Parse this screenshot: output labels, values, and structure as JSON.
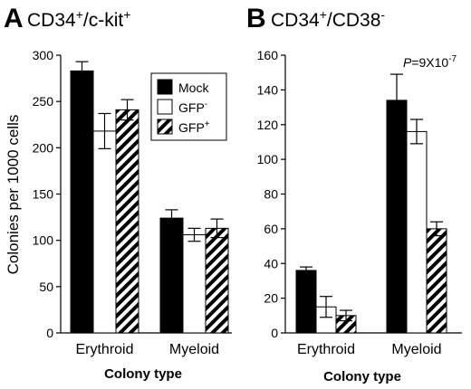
{
  "chart_data": [
    {
      "type": "bar",
      "panel_label": "A",
      "title_parts": [
        "CD34",
        "+",
        "/c-kit",
        "+"
      ],
      "categories": [
        "Erythroid",
        "Myeloid"
      ],
      "series": [
        {
          "name": "Mock",
          "values": [
            283,
            124
          ],
          "errors": [
            10,
            9
          ]
        },
        {
          "name": "GFP-",
          "values": [
            218,
            106
          ],
          "errors": [
            19,
            7
          ]
        },
        {
          "name": "GFP+",
          "values": [
            241,
            113
          ],
          "errors": [
            11,
            10
          ]
        }
      ],
      "ylabel": "Colonies per 1000 cells",
      "xlabel": "Colony type",
      "ylim": [
        0,
        300
      ],
      "yticks": [
        0,
        50,
        100,
        150,
        200,
        250,
        300
      ],
      "legend": "top-right",
      "legend_labels": [
        {
          "base": "Mock",
          "sup": ""
        },
        {
          "base": "GFP",
          "sup": "-"
        },
        {
          "base": "GFP",
          "sup": "+"
        }
      ]
    },
    {
      "type": "bar",
      "panel_label": "B",
      "title_parts": [
        "CD34",
        "+",
        "/CD38",
        "-"
      ],
      "categories": [
        "Erythroid",
        "Myeloid"
      ],
      "series": [
        {
          "name": "Mock",
          "values": [
            36,
            134
          ],
          "errors": [
            2,
            15
          ]
        },
        {
          "name": "GFP-",
          "values": [
            15,
            116
          ],
          "errors": [
            6,
            7
          ]
        },
        {
          "name": "GFP+",
          "values": [
            10,
            60
          ],
          "errors": [
            3,
            4
          ]
        }
      ],
      "xlabel": "Colony type",
      "ylim": [
        0,
        160
      ],
      "yticks": [
        0,
        20,
        40,
        60,
        80,
        100,
        120,
        140,
        160
      ],
      "annotation": {
        "prefix": "P",
        "text": "=9X10",
        "sup": "-7"
      }
    }
  ],
  "colors": {
    "mock": "#000000",
    "gfp_minus": "#ffffff",
    "gfp_plus": "hatched black/white"
  }
}
